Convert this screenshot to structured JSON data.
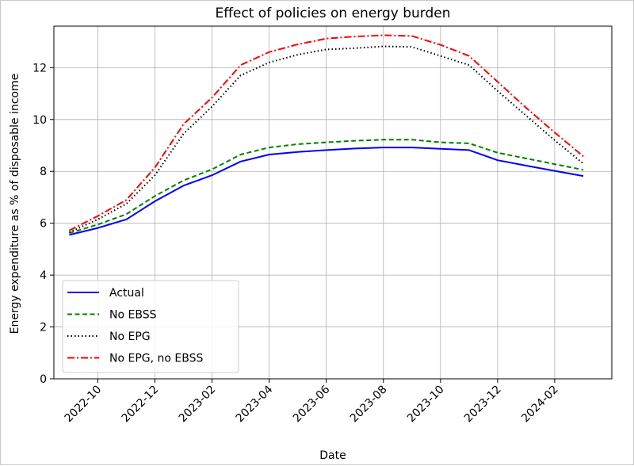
{
  "chart_data": {
    "type": "line",
    "title": "Effect of policies on energy burden",
    "xlabel": "Date",
    "ylabel": "Energy expenditure as % of disposable income",
    "ylim": [
      0,
      13.6
    ],
    "yticks": [
      0,
      2,
      4,
      6,
      8,
      10,
      12
    ],
    "xlim": [
      "2022-08-15",
      "2024-04-01"
    ],
    "xticks": [
      "2022-10",
      "2022-12",
      "2023-02",
      "2023-04",
      "2023-06",
      "2023-08",
      "2023-10",
      "2023-12",
      "2024-02"
    ],
    "grid": true,
    "legend_position": "lower-left",
    "x": [
      "2022-09",
      "2022-10",
      "2022-11",
      "2022-12",
      "2023-01",
      "2023-02",
      "2023-03",
      "2023-04",
      "2023-05",
      "2023-06",
      "2023-07",
      "2023-08",
      "2023-09",
      "2023-10",
      "2023-11",
      "2023-12",
      "2024-01",
      "2024-02",
      "2024-03"
    ],
    "series": [
      {
        "name": "Actual",
        "color": "#0000ff",
        "dash": "solid",
        "values": [
          5.55,
          5.82,
          6.15,
          6.85,
          7.45,
          7.85,
          8.38,
          8.65,
          8.75,
          8.82,
          8.88,
          8.92,
          8.92,
          8.87,
          8.82,
          8.43,
          8.22,
          8.02,
          7.82
        ]
      },
      {
        "name": "No EBSS",
        "color": "#008000",
        "dash": "dashed",
        "values": [
          5.62,
          5.95,
          6.35,
          7.05,
          7.65,
          8.08,
          8.65,
          8.92,
          9.05,
          9.12,
          9.18,
          9.22,
          9.22,
          9.12,
          9.08,
          8.72,
          8.5,
          8.28,
          8.06
        ]
      },
      {
        "name": "No EPG",
        "color": "#000000",
        "dash": "dotted",
        "values": [
          5.65,
          6.15,
          6.75,
          7.85,
          9.45,
          10.5,
          11.7,
          12.2,
          12.5,
          12.7,
          12.75,
          12.82,
          12.8,
          12.45,
          12.1,
          11.1,
          10.15,
          9.2,
          8.3
        ]
      },
      {
        "name": "No EPG, no EBSS",
        "color": "#ff0000",
        "dash": "dashdot",
        "values": [
          5.72,
          6.28,
          6.9,
          8.15,
          9.82,
          10.85,
          12.1,
          12.6,
          12.9,
          13.12,
          13.2,
          13.25,
          13.22,
          12.88,
          12.45,
          11.45,
          10.45,
          9.5,
          8.58
        ]
      }
    ]
  }
}
